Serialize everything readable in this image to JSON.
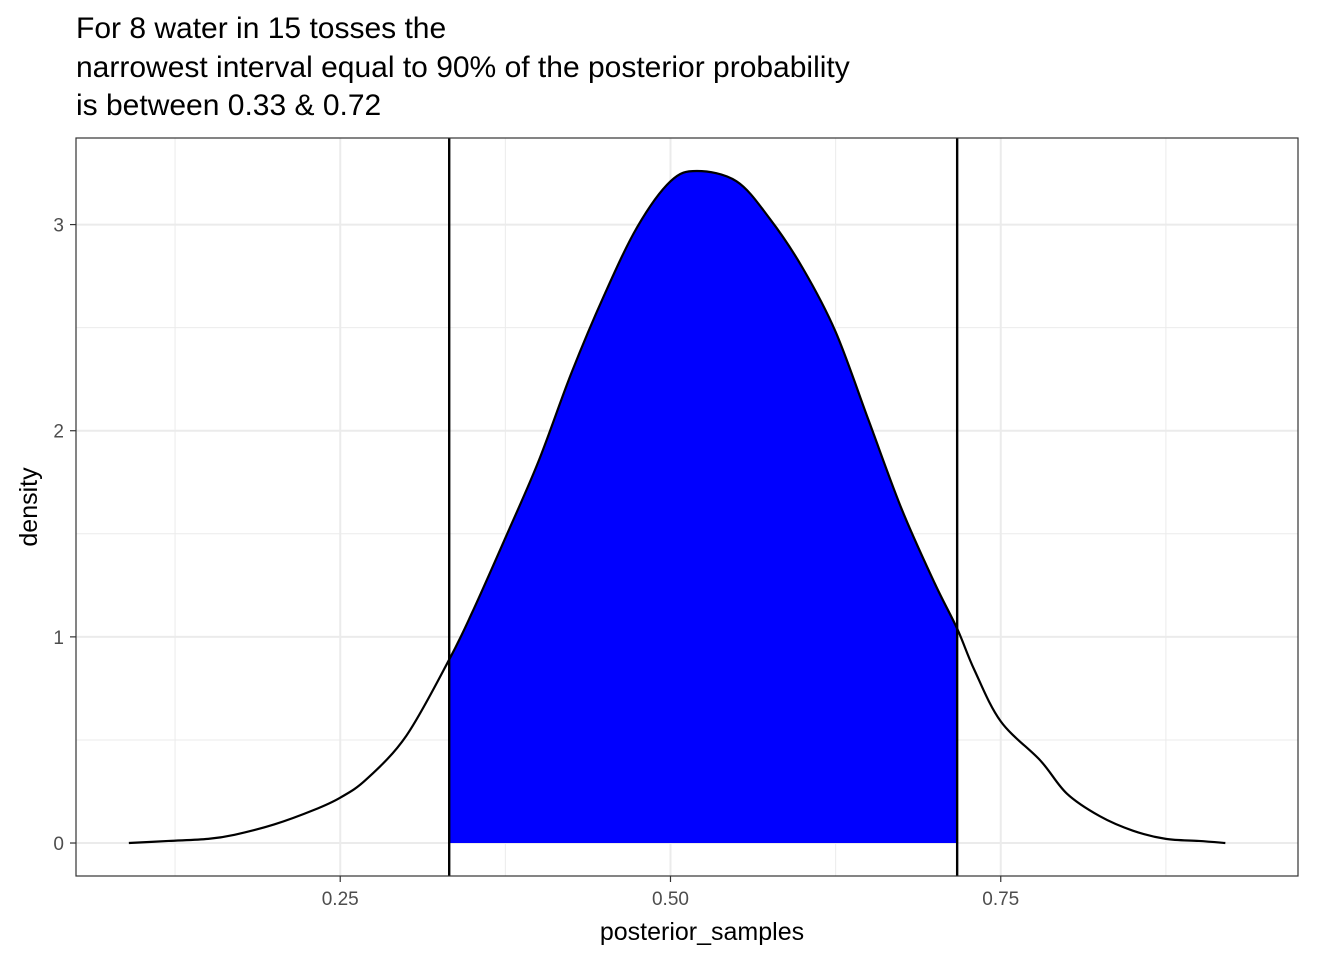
{
  "chart_data": {
    "type": "area",
    "title_lines": [
      "For 8 water in 15 tosses the",
      "narrowest interval equal to 90% of the posterior probability",
      "is between 0.33 & 0.72"
    ],
    "xlabel": "posterior_samples",
    "ylabel": "density",
    "xlim": [
      0.05,
      0.975
    ],
    "ylim": [
      -0.16,
      3.42
    ],
    "x_ticks": [
      0.25,
      0.5,
      0.75
    ],
    "x_tick_labels": [
      "0.25",
      "0.50",
      "0.75"
    ],
    "y_ticks": [
      0,
      1,
      2,
      3
    ],
    "y_tick_labels": [
      "0",
      "1",
      "2",
      "3"
    ],
    "x_minor_gridlines": [
      0.125,
      0.375,
      0.625,
      0.875
    ],
    "y_minor_gridlines": [
      0.5,
      1.5,
      2.5
    ],
    "grid": true,
    "interval": {
      "lower": 0.3325,
      "upper": 0.717
    },
    "fill_color": "#0000ff",
    "line_color": "#000000",
    "series": [
      {
        "x": [
          0.09,
          0.12,
          0.15,
          0.17,
          0.2,
          0.23,
          0.25,
          0.27,
          0.3,
          0.3325,
          0.35,
          0.375,
          0.4,
          0.425,
          0.45,
          0.475,
          0.5,
          0.52,
          0.55,
          0.575,
          0.6,
          0.625,
          0.65,
          0.675,
          0.7,
          0.717,
          0.73,
          0.75,
          0.78,
          0.8,
          0.825,
          0.85,
          0.875,
          0.9,
          0.92
        ],
        "y": [
          0.0,
          0.01,
          0.02,
          0.04,
          0.09,
          0.16,
          0.22,
          0.31,
          0.52,
          0.89,
          1.12,
          1.48,
          1.85,
          2.28,
          2.66,
          2.99,
          3.21,
          3.26,
          3.21,
          3.03,
          2.79,
          2.48,
          2.05,
          1.62,
          1.26,
          1.04,
          0.84,
          0.59,
          0.4,
          0.24,
          0.13,
          0.06,
          0.02,
          0.01,
          0.0
        ]
      }
    ]
  }
}
